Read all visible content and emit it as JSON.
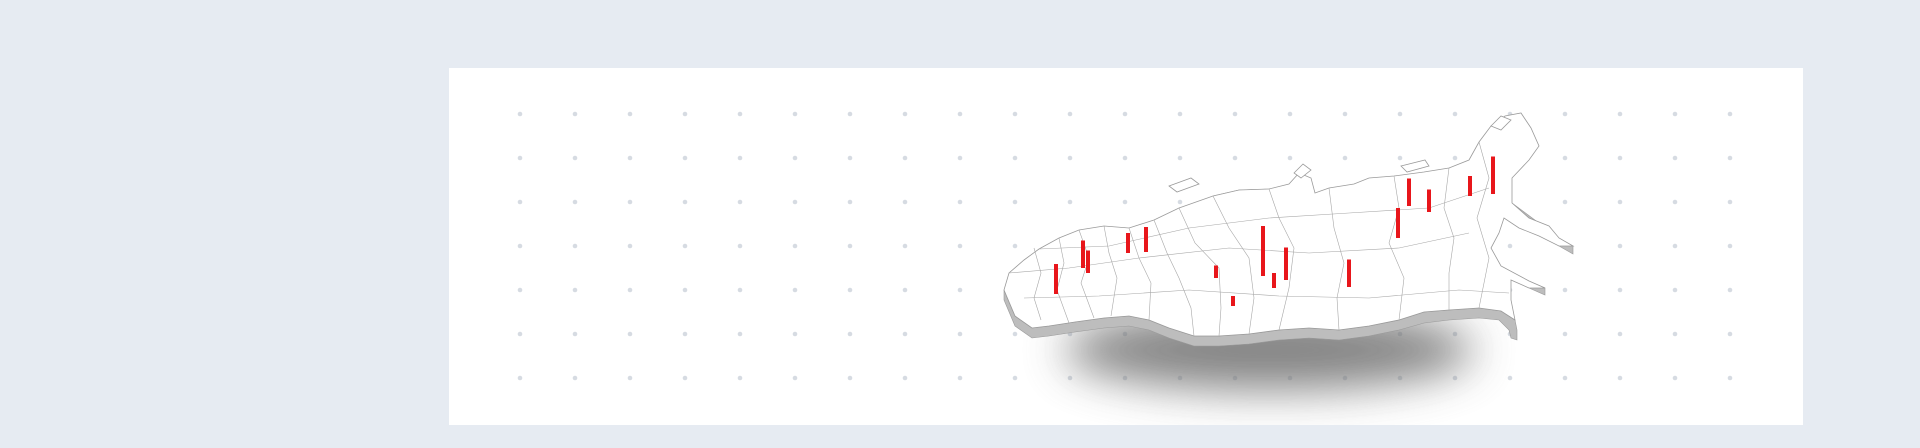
{
  "map": {
    "subject": "russia-regions-3d",
    "colors": {
      "background": "#e6ebf2",
      "card": "#ffffff",
      "dot": "#d6dbe2",
      "land_top": "#ffffff",
      "land_side": "#bdbdbd",
      "border": "#9a9a9a",
      "shadow": "#6e6e6e",
      "bar": "#e8161b"
    },
    "markers": [
      {
        "id": "marker-1",
        "value": 60
      },
      {
        "id": "marker-2",
        "value": 55
      },
      {
        "id": "marker-3",
        "value": 45
      },
      {
        "id": "marker-4",
        "value": 40
      },
      {
        "id": "marker-5",
        "value": 50
      },
      {
        "id": "marker-6",
        "value": 25
      },
      {
        "id": "marker-7",
        "value": 20
      },
      {
        "id": "marker-8",
        "value": 100
      },
      {
        "id": "marker-9",
        "value": 30
      },
      {
        "id": "marker-10",
        "value": 65
      },
      {
        "id": "marker-11",
        "value": 55
      },
      {
        "id": "marker-12",
        "value": 60
      },
      {
        "id": "marker-13",
        "value": 55
      },
      {
        "id": "marker-14",
        "value": 45
      },
      {
        "id": "marker-15",
        "value": 40
      },
      {
        "id": "marker-16",
        "value": 75
      }
    ]
  }
}
